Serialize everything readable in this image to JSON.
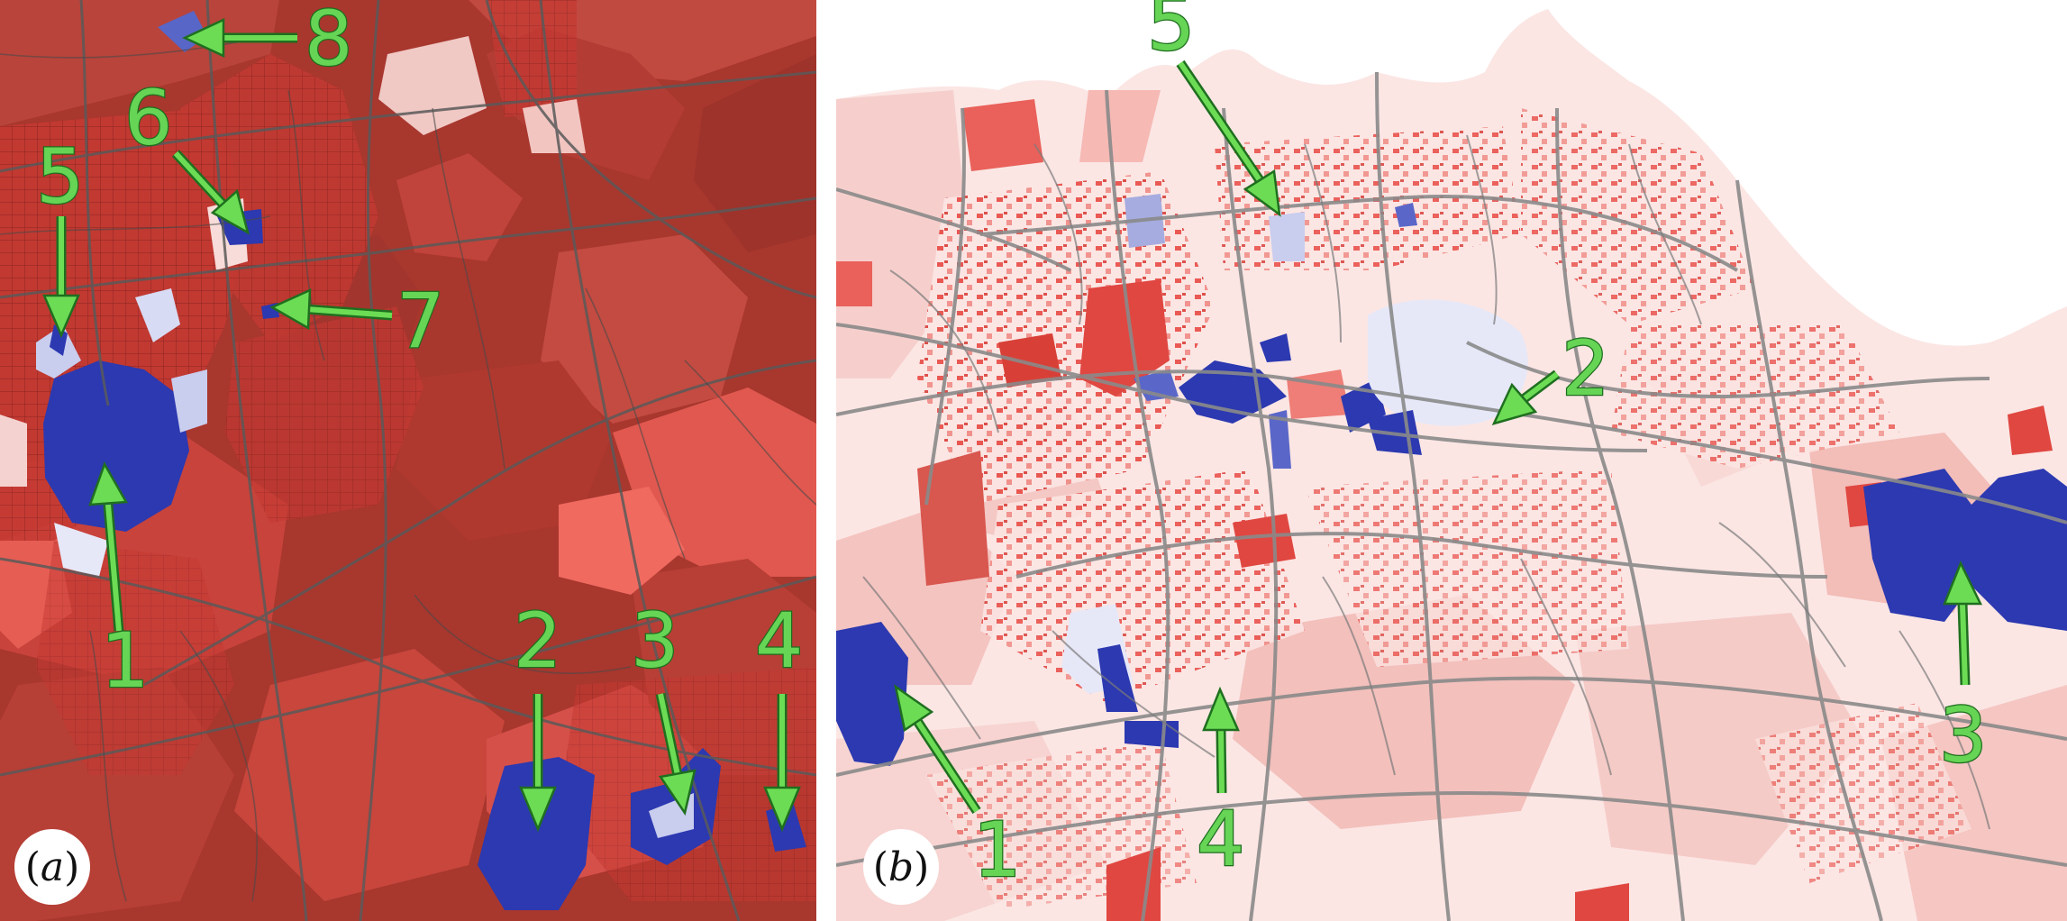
{
  "panels": [
    {
      "id": "a",
      "label": "a",
      "markers": [
        "1",
        "2",
        "3",
        "4",
        "5",
        "6",
        "7",
        "8"
      ]
    },
    {
      "id": "b",
      "label": "b",
      "markers": [
        "1",
        "2",
        "3",
        "4",
        "5"
      ]
    }
  ],
  "colors": {
    "dark_red": "#a83a30",
    "mid_red": "#d9453d",
    "light_red": "#f4b6b2",
    "pale_pink": "#fbe6e4",
    "blue": "#2c39b0",
    "light_blue": "#c9cdee",
    "road": "#8a8a8a",
    "arrow_fill": "#6cdc55",
    "arrow_edge": "#1f6f1f"
  }
}
